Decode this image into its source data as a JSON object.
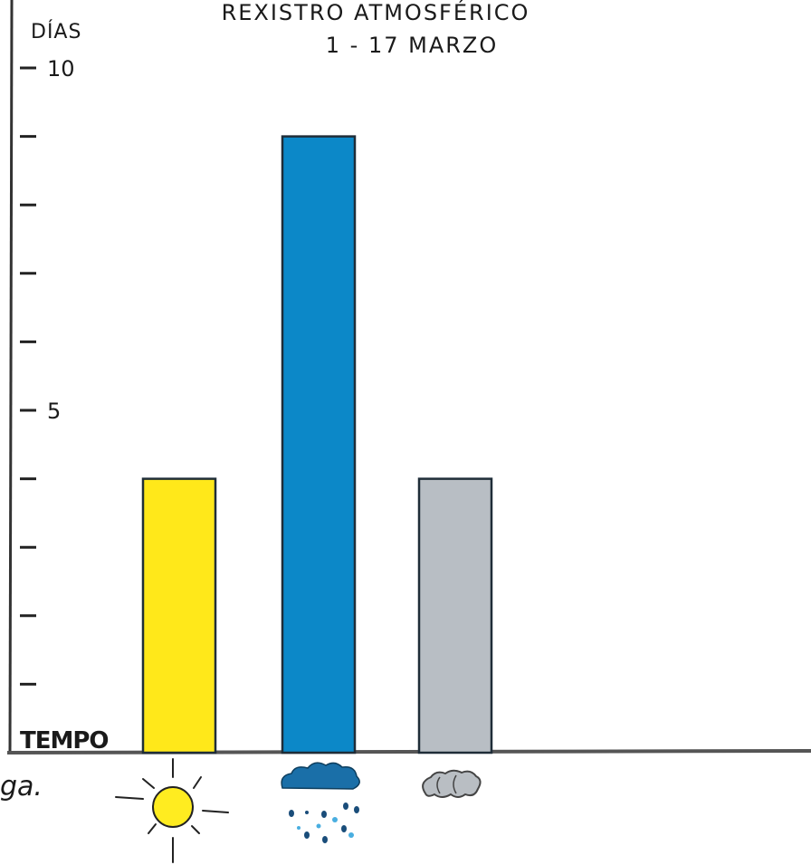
{
  "chart_data": {
    "type": "bar",
    "title": "REXISTRO ATMOSFÉRICO",
    "subtitle": "1 - 17 MARZO",
    "ylabel": "DÍAS",
    "xlabel": "TEMPO",
    "ylim": [
      0,
      10
    ],
    "yticks": [
      1,
      2,
      3,
      4,
      5,
      6,
      7,
      8,
      9,
      10
    ],
    "ytick_labels": {
      "5": "5",
      "10": "10"
    },
    "categories": [
      "sun-icon",
      "rain-cloud-icon",
      "cloud-icon"
    ],
    "values": [
      4,
      9,
      4
    ],
    "colors": [
      "#ffe81a",
      "#0c88c8",
      "#b8bec4"
    ],
    "grid": false
  }
}
